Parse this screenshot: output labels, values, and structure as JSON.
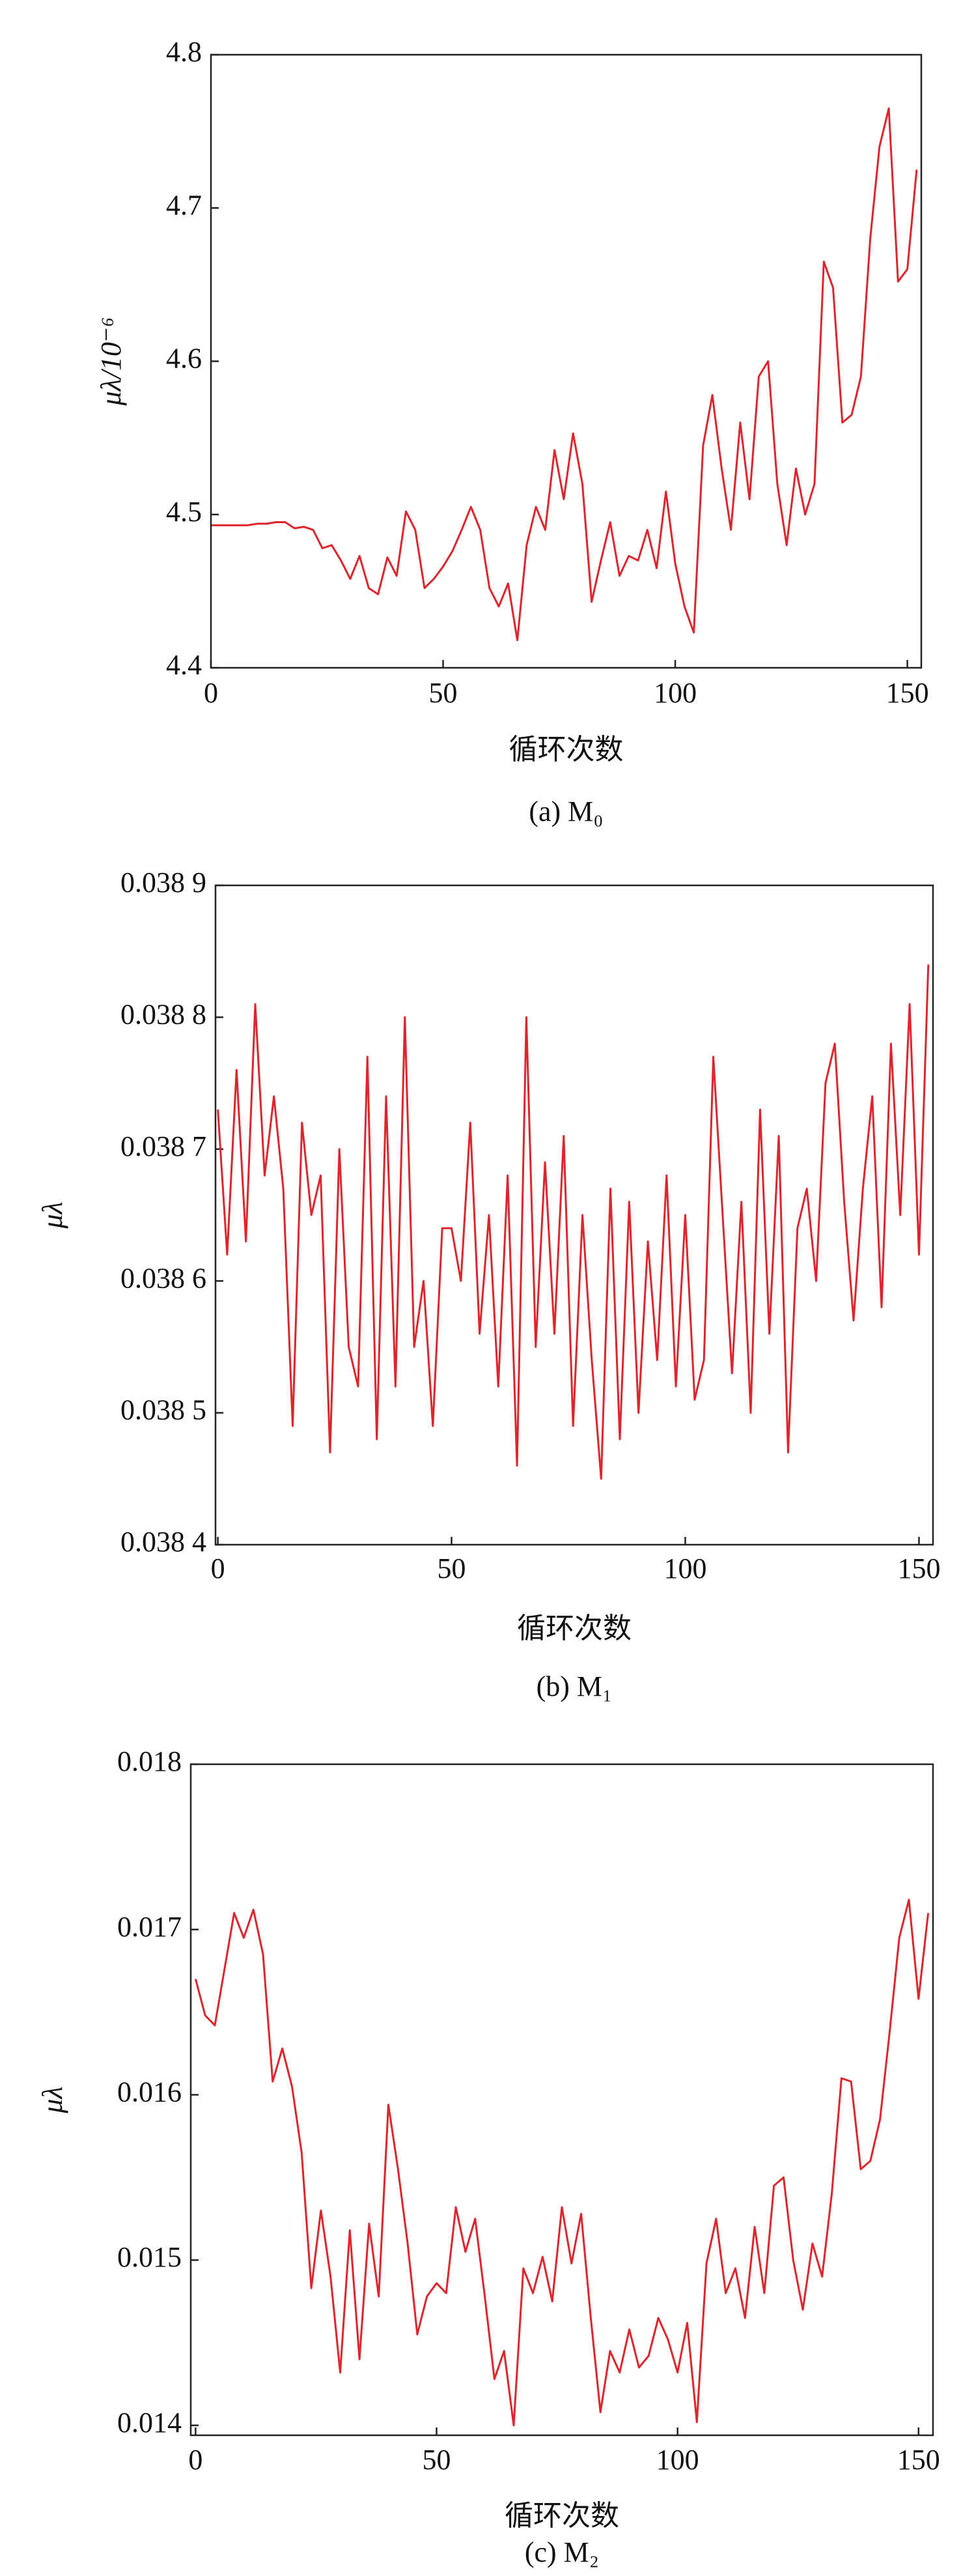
{
  "chart_data": [
    {
      "type": "line",
      "ylabel": "μλ/10⁻⁶",
      "xlabel": "循环次数",
      "caption": "(a) M₀",
      "xlim": [
        0,
        153
      ],
      "ylim": [
        4.4,
        4.8
      ],
      "xticks": [
        0,
        50,
        100,
        150
      ],
      "yticks": [
        4.4,
        4.5,
        4.6,
        4.7,
        4.8
      ],
      "x": [
        0,
        2,
        4,
        6,
        8,
        10,
        12,
        14,
        16,
        18,
        20,
        22,
        24,
        26,
        28,
        30,
        32,
        34,
        36,
        38,
        40,
        42,
        44,
        46,
        48,
        50,
        52,
        54,
        56,
        58,
        60,
        62,
        64,
        66,
        68,
        70,
        72,
        74,
        76,
        78,
        80,
        82,
        84,
        86,
        88,
        90,
        92,
        94,
        96,
        98,
        100,
        102,
        104,
        106,
        108,
        110,
        112,
        114,
        116,
        118,
        120,
        122,
        124,
        126,
        128,
        130,
        132,
        134,
        136,
        138,
        140,
        142,
        144,
        146,
        148,
        150,
        152
      ],
      "series": [
        {
          "color": "#e0242b",
          "values": [
            4.493,
            4.493,
            4.493,
            4.493,
            4.493,
            4.494,
            4.494,
            4.495,
            4.495,
            4.491,
            4.492,
            4.49,
            4.478,
            4.48,
            4.47,
            4.458,
            4.473,
            4.452,
            4.448,
            4.472,
            4.46,
            4.502,
            4.49,
            4.452,
            4.458,
            4.466,
            4.476,
            4.49,
            4.505,
            4.49,
            4.452,
            4.44,
            4.455,
            4.418,
            4.48,
            4.505,
            4.49,
            4.542,
            4.51,
            4.553,
            4.52,
            4.443,
            4.47,
            4.495,
            4.46,
            4.473,
            4.47,
            4.49,
            4.465,
            4.515,
            4.468,
            4.44,
            4.423,
            4.545,
            4.578,
            4.53,
            4.49,
            4.56,
            4.51,
            4.59,
            4.6,
            4.52,
            4.48,
            4.53,
            4.5,
            4.52,
            4.665,
            4.648,
            4.56,
            4.565,
            4.59,
            4.68,
            4.74,
            4.765,
            4.652,
            4.66,
            4.725
          ]
        }
      ]
    },
    {
      "type": "line",
      "ylabel": "μλ",
      "xlabel": "循环次数",
      "caption": "(b) M₁",
      "xlim": [
        -0.5,
        153
      ],
      "ylim": [
        0.0384,
        0.0389
      ],
      "xticks": [
        0,
        50,
        100,
        150
      ],
      "yticks": [
        {
          "value": 0.0384,
          "label": "0.038 4"
        },
        {
          "value": 0.0385,
          "label": "0.038 5"
        },
        {
          "value": 0.0386,
          "label": "0.038 6"
        },
        {
          "value": 0.0387,
          "label": "0.038 7"
        },
        {
          "value": 0.0388,
          "label": "0.038 8"
        },
        {
          "value": 0.0389,
          "label": "0.038 9"
        }
      ],
      "x": [
        0,
        2,
        4,
        6,
        8,
        10,
        12,
        14,
        16,
        18,
        20,
        22,
        24,
        26,
        28,
        30,
        32,
        34,
        36,
        38,
        40,
        42,
        44,
        46,
        48,
        50,
        52,
        54,
        56,
        58,
        60,
        62,
        64,
        66,
        68,
        70,
        72,
        74,
        76,
        78,
        80,
        82,
        84,
        86,
        88,
        90,
        92,
        94,
        96,
        98,
        100,
        102,
        104,
        106,
        108,
        110,
        112,
        114,
        116,
        118,
        120,
        122,
        124,
        126,
        128,
        130,
        132,
        134,
        136,
        138,
        140,
        142,
        144,
        146,
        148,
        150,
        152
      ],
      "series": [
        {
          "color": "#e0242b",
          "values": [
            0.03873,
            0.03862,
            0.03876,
            0.03863,
            0.03881,
            0.03868,
            0.03874,
            0.03867,
            0.03849,
            0.03872,
            0.03865,
            0.03868,
            0.03847,
            0.0387,
            0.03855,
            0.03852,
            0.03877,
            0.03848,
            0.03874,
            0.03852,
            0.0388,
            0.03855,
            0.0386,
            0.03849,
            0.03864,
            0.03864,
            0.0386,
            0.03872,
            0.03856,
            0.03865,
            0.03852,
            0.03868,
            0.03846,
            0.0388,
            0.03855,
            0.03869,
            0.03856,
            0.03871,
            0.03849,
            0.03865,
            0.03854,
            0.03845,
            0.03867,
            0.03848,
            0.03866,
            0.0385,
            0.03863,
            0.03854,
            0.03868,
            0.03852,
            0.03865,
            0.03851,
            0.03854,
            0.03877,
            0.03865,
            0.03853,
            0.03866,
            0.0385,
            0.03873,
            0.03856,
            0.03871,
            0.03847,
            0.03864,
            0.03867,
            0.0386,
            0.03875,
            0.03878,
            0.03866,
            0.03857,
            0.03867,
            0.03874,
            0.03858,
            0.03878,
            0.03865,
            0.03881,
            0.03862,
            0.03884
          ]
        }
      ]
    },
    {
      "type": "line",
      "ylabel": "μλ",
      "xlabel": "循环次数",
      "caption": "(c) M₂",
      "xlim": [
        -1,
        153
      ],
      "ylim": [
        0.01394,
        0.018
      ],
      "xticks": [
        0,
        50,
        100,
        150
      ],
      "yticks": [
        0.014,
        0.015,
        0.016,
        0.017,
        0.018
      ],
      "x": [
        0,
        2,
        4,
        6,
        8,
        10,
        12,
        14,
        16,
        18,
        20,
        22,
        24,
        26,
        28,
        30,
        32,
        34,
        36,
        38,
        40,
        42,
        44,
        46,
        48,
        50,
        52,
        54,
        56,
        58,
        60,
        62,
        64,
        66,
        68,
        70,
        72,
        74,
        76,
        78,
        80,
        82,
        84,
        86,
        88,
        90,
        92,
        94,
        96,
        98,
        100,
        102,
        104,
        106,
        108,
        110,
        112,
        114,
        116,
        118,
        120,
        122,
        124,
        126,
        128,
        130,
        132,
        134,
        136,
        138,
        140,
        142,
        144,
        146,
        148,
        150,
        152
      ],
      "series": [
        {
          "color": "#e0242b",
          "values": [
            0.0167,
            0.01648,
            0.01642,
            0.01676,
            0.0171,
            0.01695,
            0.01712,
            0.01685,
            0.01608,
            0.01628,
            0.01605,
            0.01565,
            0.01483,
            0.0153,
            0.0149,
            0.01432,
            0.01518,
            0.0144,
            0.01522,
            0.01478,
            0.01594,
            0.01555,
            0.0151,
            0.01455,
            0.01478,
            0.01486,
            0.0148,
            0.01532,
            0.01505,
            0.01525,
            0.01478,
            0.01428,
            0.01445,
            0.014,
            0.01495,
            0.0148,
            0.01502,
            0.01475,
            0.01532,
            0.01498,
            0.01528,
            0.01465,
            0.01408,
            0.01445,
            0.01432,
            0.01458,
            0.01435,
            0.01442,
            0.01465,
            0.01452,
            0.01432,
            0.01462,
            0.01402,
            0.01498,
            0.01525,
            0.0148,
            0.01495,
            0.01465,
            0.0152,
            0.0148,
            0.01545,
            0.0155,
            0.015,
            0.0147,
            0.0151,
            0.0149,
            0.0154,
            0.0161,
            0.01608,
            0.01555,
            0.0156,
            0.01585,
            0.01638,
            0.01695,
            0.01718,
            0.01658,
            0.0171
          ]
        }
      ]
    }
  ]
}
